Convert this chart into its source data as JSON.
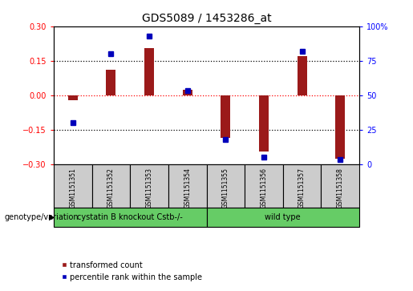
{
  "title": "GDS5089 / 1453286_at",
  "samples": [
    "GSM1151351",
    "GSM1151352",
    "GSM1151353",
    "GSM1151354",
    "GSM1151355",
    "GSM1151356",
    "GSM1151357",
    "GSM1151358"
  ],
  "red_values": [
    -0.022,
    0.11,
    0.205,
    0.022,
    -0.185,
    -0.245,
    0.168,
    -0.278
  ],
  "blue_values": [
    30,
    80,
    93,
    53,
    18,
    5,
    82,
    3
  ],
  "ylim_left": [
    -0.3,
    0.3
  ],
  "ylim_right": [
    0,
    100
  ],
  "yticks_left": [
    -0.3,
    -0.15,
    0,
    0.15,
    0.3
  ],
  "yticks_right": [
    0,
    25,
    50,
    75,
    100
  ],
  "ytick_labels_right": [
    "0",
    "25",
    "50",
    "75",
    "100%"
  ],
  "hlines_black": [
    -0.15,
    0.15
  ],
  "hline_red": 0,
  "group1_label": "cystatin B knockout Cstb-/-",
  "group2_label": "wild type",
  "group1_count": 4,
  "group2_count": 4,
  "genotype_label": "genotype/variation",
  "legend_red": "transformed count",
  "legend_blue": "percentile rank within the sample",
  "bar_color": "#9b1a1a",
  "dot_color": "#0000bb",
  "bar_width": 0.25,
  "group_bg": "#66cc66",
  "plot_bg": "#ffffff",
  "cell_bg": "#cccccc",
  "title_fontsize": 10,
  "tick_fontsize": 7,
  "label_fontsize": 7.5
}
